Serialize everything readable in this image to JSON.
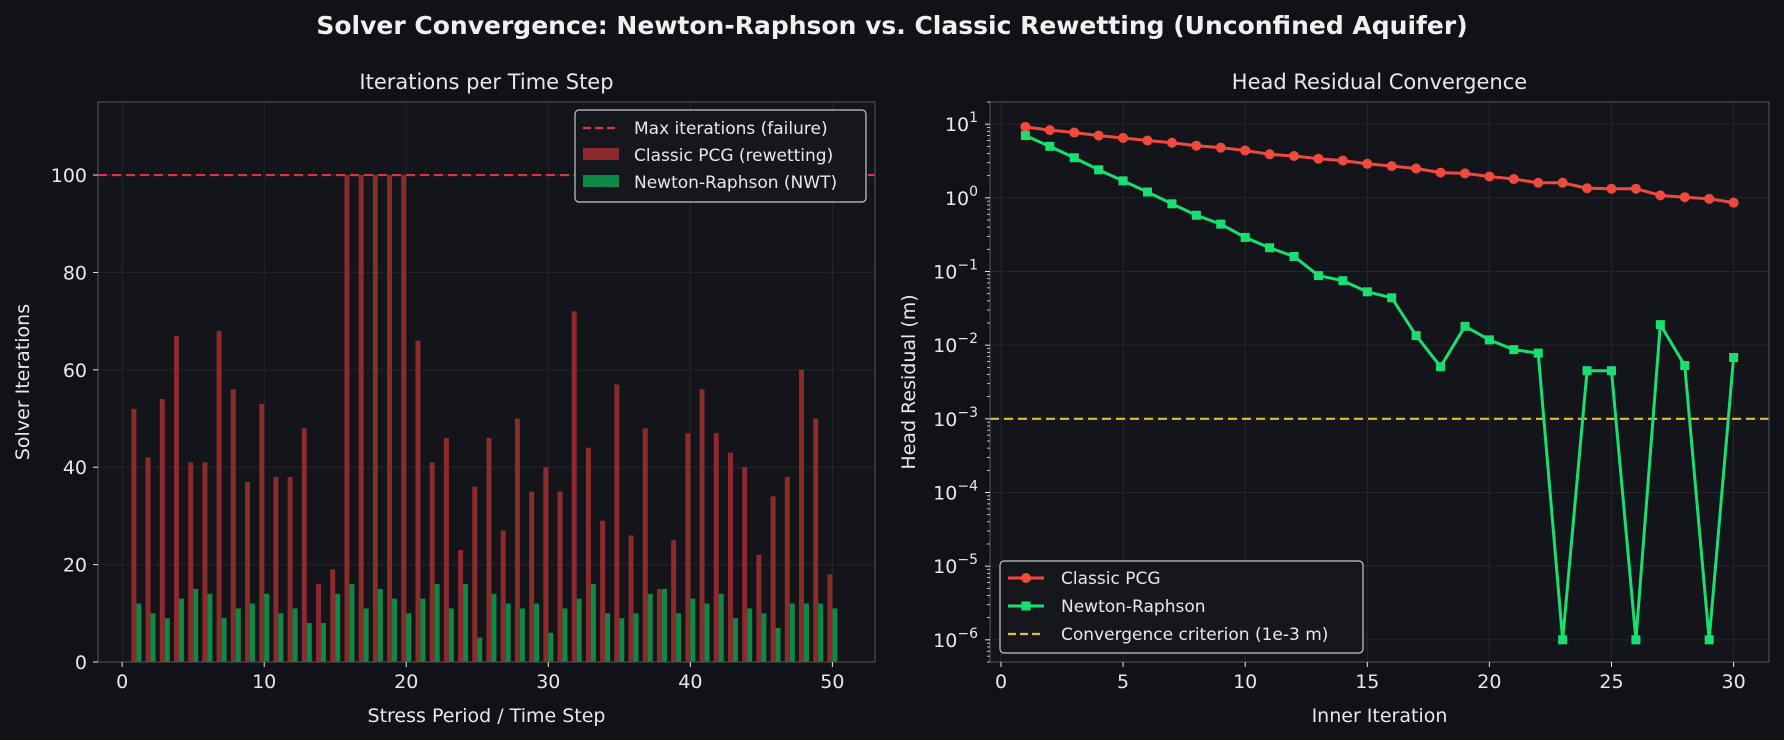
{
  "suptitle": "Solver Convergence: Newton-Raphson vs. Classic Rewetting (Unconfined Aquifer)",
  "colors": {
    "background": "#111217",
    "axes_face": "#14151b",
    "spine": "#4a4d55",
    "grid": "#24262d",
    "text": "#e8e8e8",
    "classic": "#8b2b2b",
    "newton": "#0d8a46",
    "max_line": "#d9363e",
    "classic_line": "#f04a3f",
    "newton_line": "#18e070",
    "criterion": "#e0c030"
  },
  "chart_data": [
    {
      "type": "bar",
      "title": "Iterations per Time Step",
      "xlabel": "Stress Period / Time Step",
      "ylabel": "Solver Iterations",
      "xlim": [
        -1.7,
        53
      ],
      "ylim": [
        0,
        115
      ],
      "xticks": [
        0,
        10,
        20,
        30,
        40,
        50
      ],
      "yticks": [
        0,
        20,
        40,
        60,
        80,
        100
      ],
      "grid": true,
      "legend_position": "upper right",
      "x": [
        1,
        2,
        3,
        4,
        5,
        6,
        7,
        8,
        9,
        10,
        11,
        12,
        13,
        14,
        15,
        16,
        17,
        18,
        19,
        20,
        21,
        22,
        23,
        24,
        25,
        26,
        27,
        28,
        29,
        30,
        31,
        32,
        33,
        34,
        35,
        36,
        37,
        38,
        39,
        40,
        41,
        42,
        43,
        44,
        45,
        46,
        47,
        48,
        49,
        50
      ],
      "series": [
        {
          "name": "Classic PCG (rewetting)",
          "values": [
            52,
            42,
            54,
            67,
            41,
            41,
            68,
            56,
            37,
            53,
            38,
            38,
            48,
            16,
            19,
            100,
            100,
            100,
            100,
            100,
            66,
            41,
            46,
            23,
            36,
            46,
            27,
            50,
            35,
            40,
            35,
            72,
            44,
            29,
            57,
            26,
            48,
            15,
            25,
            47,
            56,
            47,
            43,
            40,
            22,
            34,
            38,
            60,
            50,
            18
          ]
        },
        {
          "name": "Newton-Raphson (NWT)",
          "values": [
            12,
            10,
            9,
            13,
            15,
            14,
            9,
            11,
            12,
            14,
            10,
            11,
            8,
            8,
            14,
            16,
            11,
            15,
            13,
            10,
            13,
            16,
            11,
            16,
            5,
            14,
            12,
            11,
            12,
            6,
            11,
            13,
            16,
            10,
            9,
            10,
            14,
            15,
            10,
            13,
            12,
            14,
            9,
            11,
            10,
            7,
            12,
            12,
            12,
            11
          ]
        }
      ],
      "reference_line": {
        "name": "Max iterations (failure)",
        "y": 100
      }
    },
    {
      "type": "line",
      "title": "Head Residual Convergence",
      "xlabel": "Inner Iteration",
      "ylabel": "Head Residual (m)",
      "yscale": "log",
      "xlim": [
        -0.45,
        31.45
      ],
      "ylim": [
        5e-07,
        20
      ],
      "xticks": [
        0,
        5,
        10,
        15,
        20,
        25,
        30
      ],
      "ytick_labels": [
        {
          "base": "10",
          "exp": "1",
          "value": 10
        },
        {
          "base": "10",
          "exp": "0",
          "value": 1
        },
        {
          "base": "10",
          "exp": "−1",
          "value": 0.1
        },
        {
          "base": "10",
          "exp": "−2",
          "value": 0.01
        },
        {
          "base": "10",
          "exp": "−3",
          "value": 0.001
        },
        {
          "base": "10",
          "exp": "−4",
          "value": 0.0001
        },
        {
          "base": "10",
          "exp": "−5",
          "value": 1e-05
        },
        {
          "base": "10",
          "exp": "−6",
          "value": 1e-06
        }
      ],
      "grid": true,
      "legend_position": "lower left",
      "x": [
        1,
        2,
        3,
        4,
        5,
        6,
        7,
        8,
        9,
        10,
        11,
        12,
        13,
        14,
        15,
        16,
        17,
        18,
        19,
        20,
        21,
        22,
        23,
        24,
        25,
        26,
        27,
        28,
        29,
        30
      ],
      "series": [
        {
          "name": "Classic PCG",
          "marker": "circle",
          "values": [
            9.2,
            8.3,
            7.7,
            7.0,
            6.5,
            6.0,
            5.6,
            5.1,
            4.8,
            4.4,
            3.9,
            3.7,
            3.4,
            3.2,
            2.9,
            2.7,
            2.5,
            2.2,
            2.15,
            1.95,
            1.8,
            1.6,
            1.6,
            1.35,
            1.33,
            1.33,
            1.08,
            1.02,
            0.97,
            0.86
          ]
        },
        {
          "name": "Newton-Raphson",
          "marker": "square",
          "values": [
            7.0,
            5.0,
            3.5,
            2.4,
            1.7,
            1.2,
            0.83,
            0.58,
            0.44,
            0.29,
            0.21,
            0.16,
            0.088,
            0.075,
            0.053,
            0.044,
            0.0135,
            0.0051,
            0.018,
            0.0118,
            0.0087,
            0.0078,
            1e-06,
            0.0045,
            0.0045,
            1e-06,
            0.019,
            0.0053,
            1e-06,
            0.0068
          ]
        }
      ],
      "reference_line": {
        "name": "Convergence criterion (1e-3 m)",
        "y": 0.001
      }
    }
  ]
}
